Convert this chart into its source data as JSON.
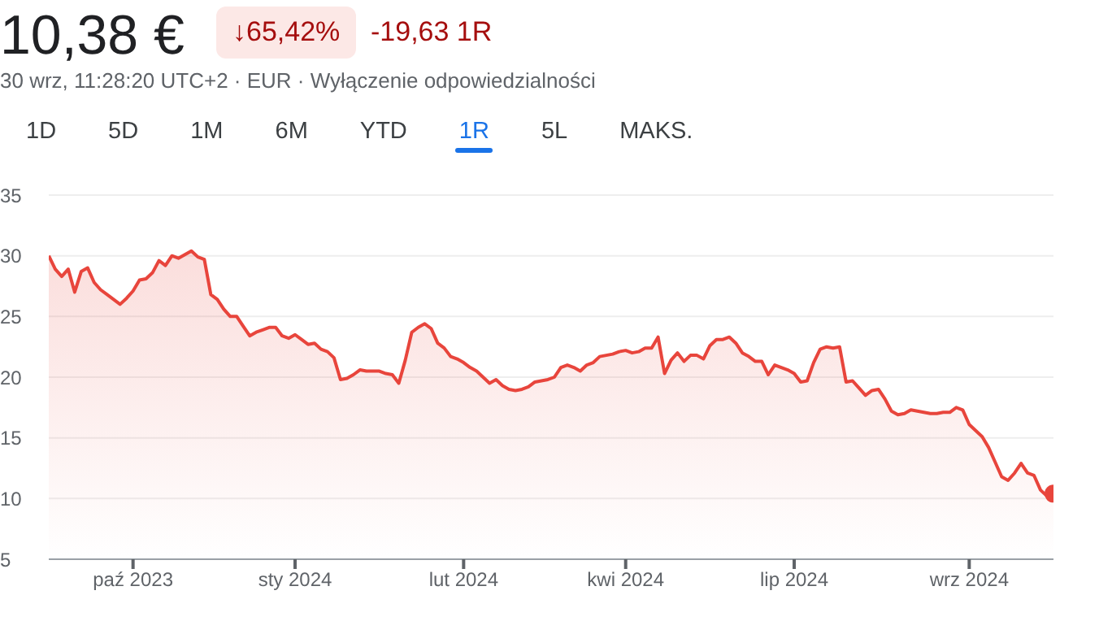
{
  "chart_data": {
    "type": "area",
    "title": "10,38 €",
    "subtitle": "30 wrz, 11:28:20 UTC+2 · EUR · Wyłączenie odpowiedzialności",
    "annotations": [
      "↓65,42%",
      "-19,63 1R",
      "1D",
      "5D",
      "1M",
      "6M",
      "YTD",
      "1R",
      "5L",
      "MAKS."
    ],
    "categories": [
      null,
      null,
      null,
      null,
      null,
      null,
      null,
      null,
      null,
      null,
      null,
      null,
      null,
      "paź 2023",
      null,
      null,
      null,
      null,
      null,
      null,
      null,
      null,
      null,
      null,
      null,
      null,
      null,
      null,
      null,
      null,
      null,
      null,
      null,
      null,
      null,
      null,
      null,
      null,
      "sty 2024",
      null,
      null,
      null,
      null,
      null,
      null,
      null,
      null,
      null,
      null,
      null,
      null,
      null,
      null,
      null,
      null,
      null,
      null,
      null,
      null,
      null,
      null,
      null,
      null,
      null,
      "lut 2024",
      null,
      null,
      null,
      null,
      null,
      null,
      null,
      null,
      null,
      null,
      null,
      null,
      null,
      null,
      null,
      null,
      null,
      null,
      null,
      null,
      null,
      null,
      null,
      null,
      "kwi 2024",
      null,
      null,
      null,
      null,
      null,
      null,
      null,
      null,
      null,
      null,
      null,
      null,
      null,
      null,
      null,
      null,
      null,
      null,
      null,
      null,
      null,
      null,
      null,
      null,
      null,
      "lip 2024",
      null,
      null,
      null,
      null,
      null,
      null,
      null,
      null,
      null,
      null,
      null,
      null,
      null,
      null,
      null,
      null,
      null,
      null,
      null,
      null,
      null,
      null,
      null,
      null,
      null,
      null,
      "wrz 2024",
      null,
      null,
      null,
      null,
      null,
      null,
      null,
      null,
      null,
      null,
      null,
      null,
      null
    ],
    "series": [
      {
        "color": "#e8453c",
        "values": [
          30.0,
          28.9,
          28.3,
          28.9,
          27.0,
          28.7,
          29.0,
          27.8,
          27.2,
          26.8,
          26.4,
          26.0,
          26.5,
          27.1,
          28.0,
          28.1,
          28.6,
          29.6,
          29.2,
          30.0,
          29.8,
          30.1,
          30.4,
          29.9,
          29.7,
          26.8,
          26.4,
          25.6,
          25.0,
          25.0,
          24.2,
          23.4,
          23.7,
          23.9,
          24.1,
          24.1,
          23.4,
          23.2,
          23.5,
          23.1,
          22.7,
          22.8,
          22.3,
          22.1,
          21.6,
          19.8,
          19.9,
          20.2,
          20.6,
          20.5,
          20.5,
          20.5,
          20.3,
          20.2,
          19.5,
          21.4,
          23.7,
          24.1,
          24.4,
          24.0,
          22.8,
          22.4,
          21.7,
          21.5,
          21.2,
          20.8,
          20.5,
          20.0,
          19.5,
          19.8,
          19.3,
          19.0,
          18.9,
          19.0,
          19.2,
          19.6,
          19.7,
          19.8,
          20.0,
          20.8,
          21.0,
          20.8,
          20.5,
          21.0,
          21.2,
          21.7,
          21.8,
          21.9,
          22.1,
          22.2,
          22.0,
          22.1,
          22.4,
          22.4,
          23.3,
          20.3,
          21.4,
          22.0,
          21.3,
          21.8,
          21.8,
          21.5,
          22.6,
          23.1,
          23.1,
          23.3,
          22.8,
          22.0,
          21.7,
          21.3,
          21.3,
          20.2,
          21.0,
          20.8,
          20.6,
          20.3,
          19.6,
          19.7,
          21.2,
          22.3,
          22.5,
          22.4,
          22.5,
          19.6,
          19.7,
          19.1,
          18.5,
          18.9,
          19.0,
          18.2,
          17.2,
          16.9,
          17.0,
          17.3,
          17.2,
          17.1,
          17.0,
          17.0,
          17.1,
          17.1,
          17.5,
          17.3,
          16.1,
          15.6,
          15.1,
          14.2,
          13.0,
          11.8,
          11.5,
          12.1,
          12.9,
          12.1,
          11.9,
          10.7,
          10.2,
          10.4
        ]
      },
      {
        "type": "scatter",
        "color": "#e8453c",
        "values": [
          null,
          null,
          null,
          null,
          null,
          null,
          null,
          null,
          null,
          null,
          null,
          null,
          null,
          null,
          null,
          null,
          null,
          null,
          null,
          null,
          null,
          null,
          null,
          null,
          null,
          null,
          null,
          null,
          null,
          null,
          null,
          null,
          null,
          null,
          null,
          null,
          null,
          null,
          null,
          null,
          null,
          null,
          null,
          null,
          null,
          null,
          null,
          null,
          null,
          null,
          null,
          null,
          null,
          null,
          null,
          null,
          null,
          null,
          null,
          null,
          null,
          null,
          null,
          null,
          null,
          null,
          null,
          null,
          null,
          null,
          null,
          null,
          null,
          null,
          null,
          null,
          null,
          null,
          null,
          null,
          null,
          null,
          null,
          null,
          null,
          null,
          null,
          null,
          null,
          null,
          null,
          null,
          null,
          null,
          null,
          null,
          null,
          null,
          null,
          null,
          null,
          null,
          null,
          null,
          null,
          null,
          null,
          null,
          null,
          null,
          null,
          null,
          null,
          null,
          null,
          null,
          null,
          null,
          null,
          null,
          null,
          null,
          null,
          null,
          null,
          null,
          null,
          null,
          null,
          null,
          null,
          null,
          null,
          null,
          null,
          null,
          null,
          null,
          null,
          null,
          null,
          null,
          null,
          null,
          null,
          null,
          null,
          null,
          null,
          null,
          null,
          null,
          null,
          null,
          null,
          10.4
        ]
      }
    ],
    "ylim": [
      5,
      35
    ],
    "yticks": [
      5,
      10,
      15,
      20,
      25,
      30,
      35
    ],
    "grid": "y",
    "legend": false
  }
}
